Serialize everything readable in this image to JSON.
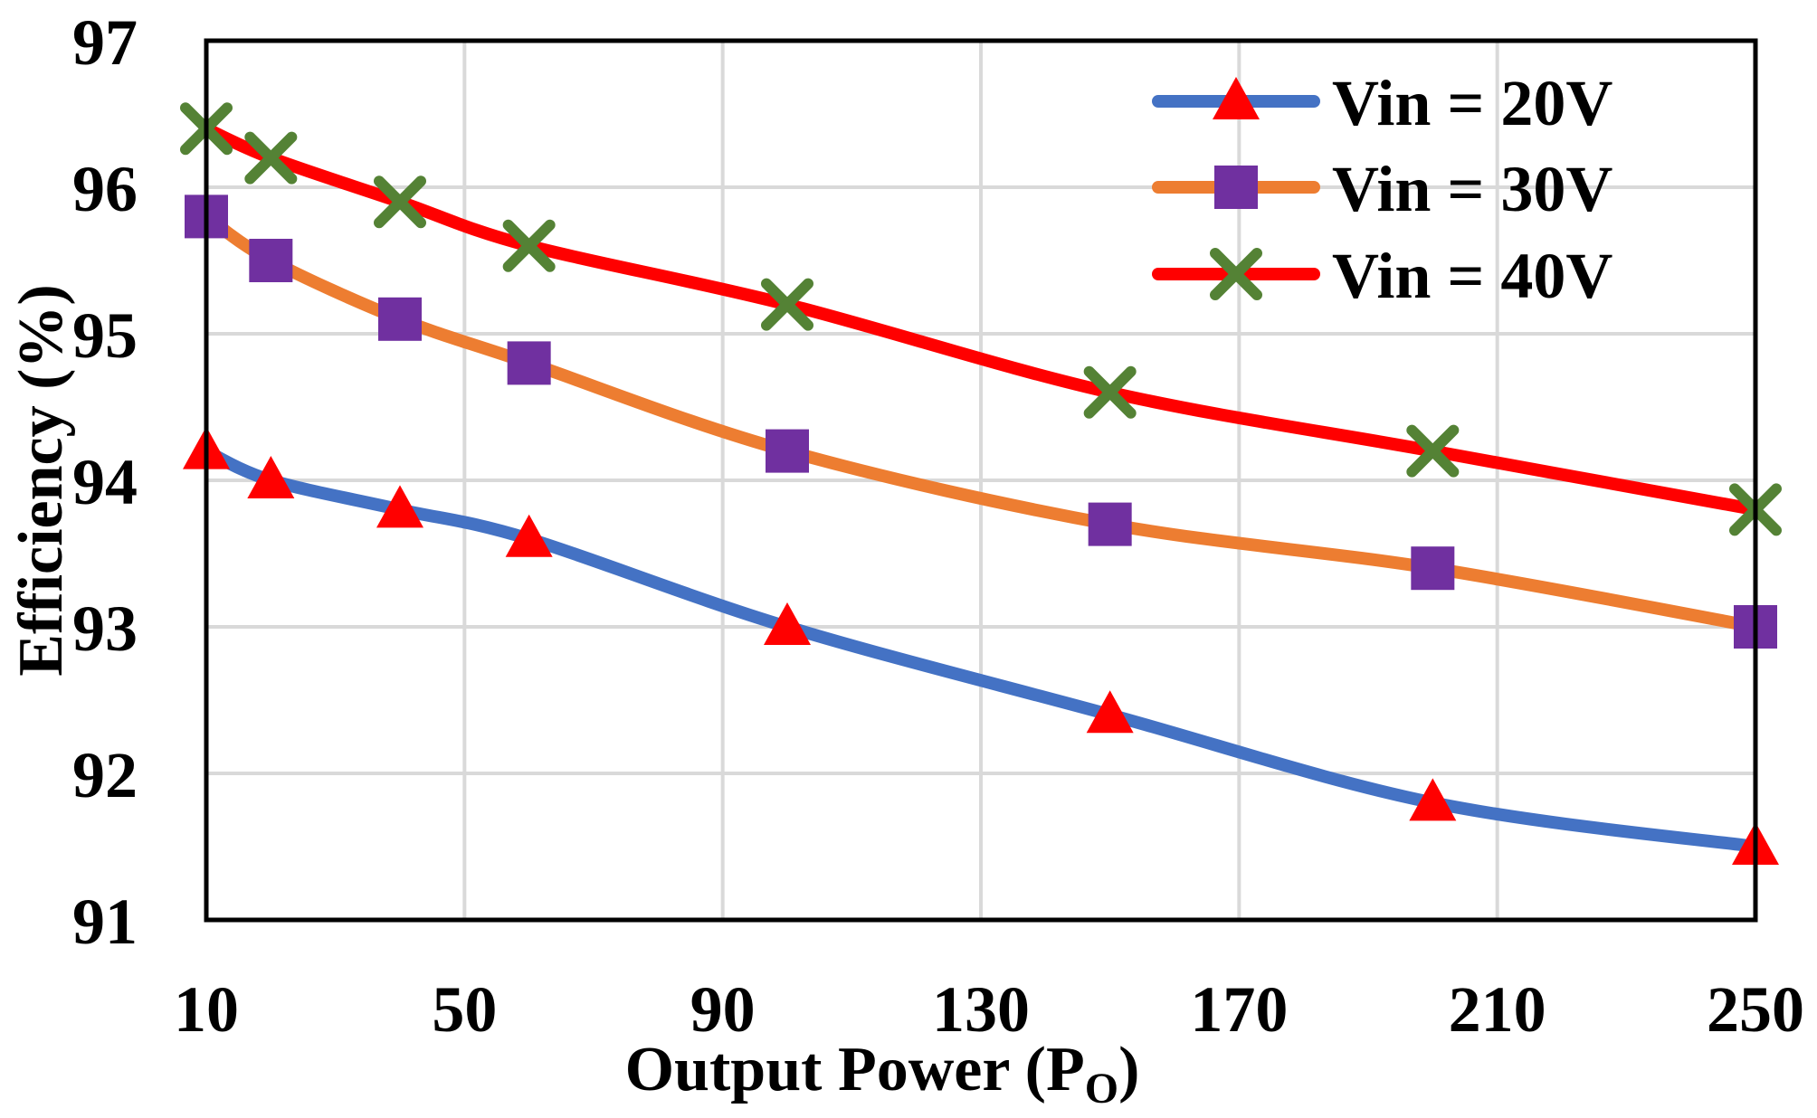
{
  "chart_data": {
    "type": "line",
    "xlabel": "Output Power (P",
    "xlabel_sub": "O",
    "xlabel_suffix": ")",
    "ylabel": "Efficiency (%)",
    "xlim": [
      10,
      250
    ],
    "ylim": [
      91,
      97
    ],
    "x_ticks": [
      "10",
      "50",
      "90",
      "130",
      "170",
      "210",
      "250"
    ],
    "y_ticks": [
      "91",
      "92",
      "93",
      "94",
      "95",
      "96",
      "97"
    ],
    "grid": true,
    "legend_position": "top-right",
    "x": [
      10,
      20,
      40,
      60,
      100,
      150,
      200,
      250
    ],
    "series": [
      {
        "name": "Vin = 20V",
        "line_color": "#4472c4",
        "marker": "triangle",
        "marker_color": "#ff0000",
        "values": [
          94.2,
          94.0,
          93.8,
          93.6,
          93.0,
          92.4,
          91.8,
          91.5
        ]
      },
      {
        "name": "Vin = 30V",
        "line_color": "#ed7d31",
        "marker": "square",
        "marker_color": "#7030a0",
        "values": [
          95.8,
          95.5,
          95.1,
          94.8,
          94.2,
          93.7,
          93.4,
          93.0
        ]
      },
      {
        "name": "Vin = 40V",
        "line_color": "#ff0000",
        "marker": "x",
        "marker_color": "#548235",
        "values": [
          96.4,
          96.2,
          95.9,
          95.6,
          95.2,
          94.6,
          94.2,
          93.8
        ]
      }
    ]
  }
}
